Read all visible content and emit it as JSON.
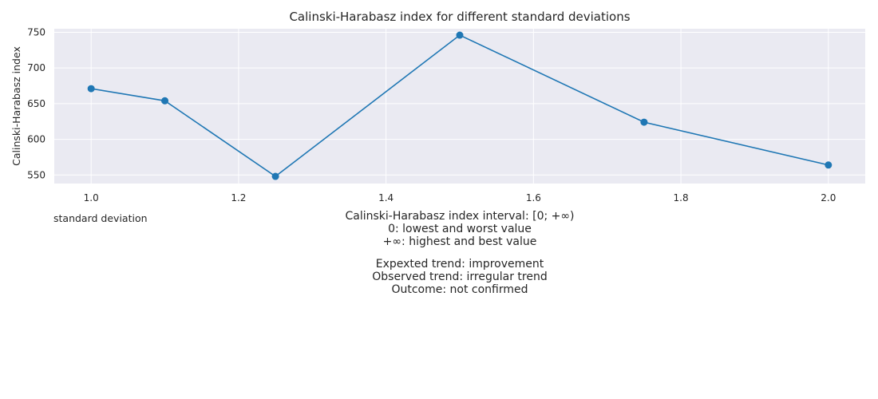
{
  "chart_data": {
    "type": "line",
    "title": "Calinski-Harabasz index for different standard deviations",
    "xlabel": "standard deviation",
    "ylabel": "Calinski-Harabasz index",
    "x": [
      1.0,
      1.1,
      1.25,
      1.5,
      1.75,
      2.0
    ],
    "y": [
      671,
      654,
      548,
      746,
      624,
      564
    ],
    "xlim": [
      0.95,
      2.05
    ],
    "ylim": [
      538,
      755
    ],
    "xticks": [
      1.0,
      1.2,
      1.4,
      1.6,
      1.8,
      2.0
    ],
    "xtick_labels": [
      "1.0",
      "1.2",
      "1.4",
      "1.6",
      "1.8",
      "2.0"
    ],
    "yticks": [
      550,
      600,
      650,
      700,
      750
    ],
    "ytick_labels": [
      "550",
      "600",
      "650",
      "700",
      "750"
    ],
    "grid": true,
    "colors": {
      "line": "#1f77b4",
      "plot_bg": "#eaeaf2",
      "grid": "#ffffff"
    }
  },
  "annotations": {
    "interval_lines": [
      "Calinski-Harabasz index interval: [0; +∞)",
      "0: lowest and worst value",
      "+∞: highest and best value"
    ],
    "trend_lines": [
      "Expexted trend: improvement",
      "Observed trend: irregular trend",
      "Outcome: not confirmed"
    ]
  }
}
